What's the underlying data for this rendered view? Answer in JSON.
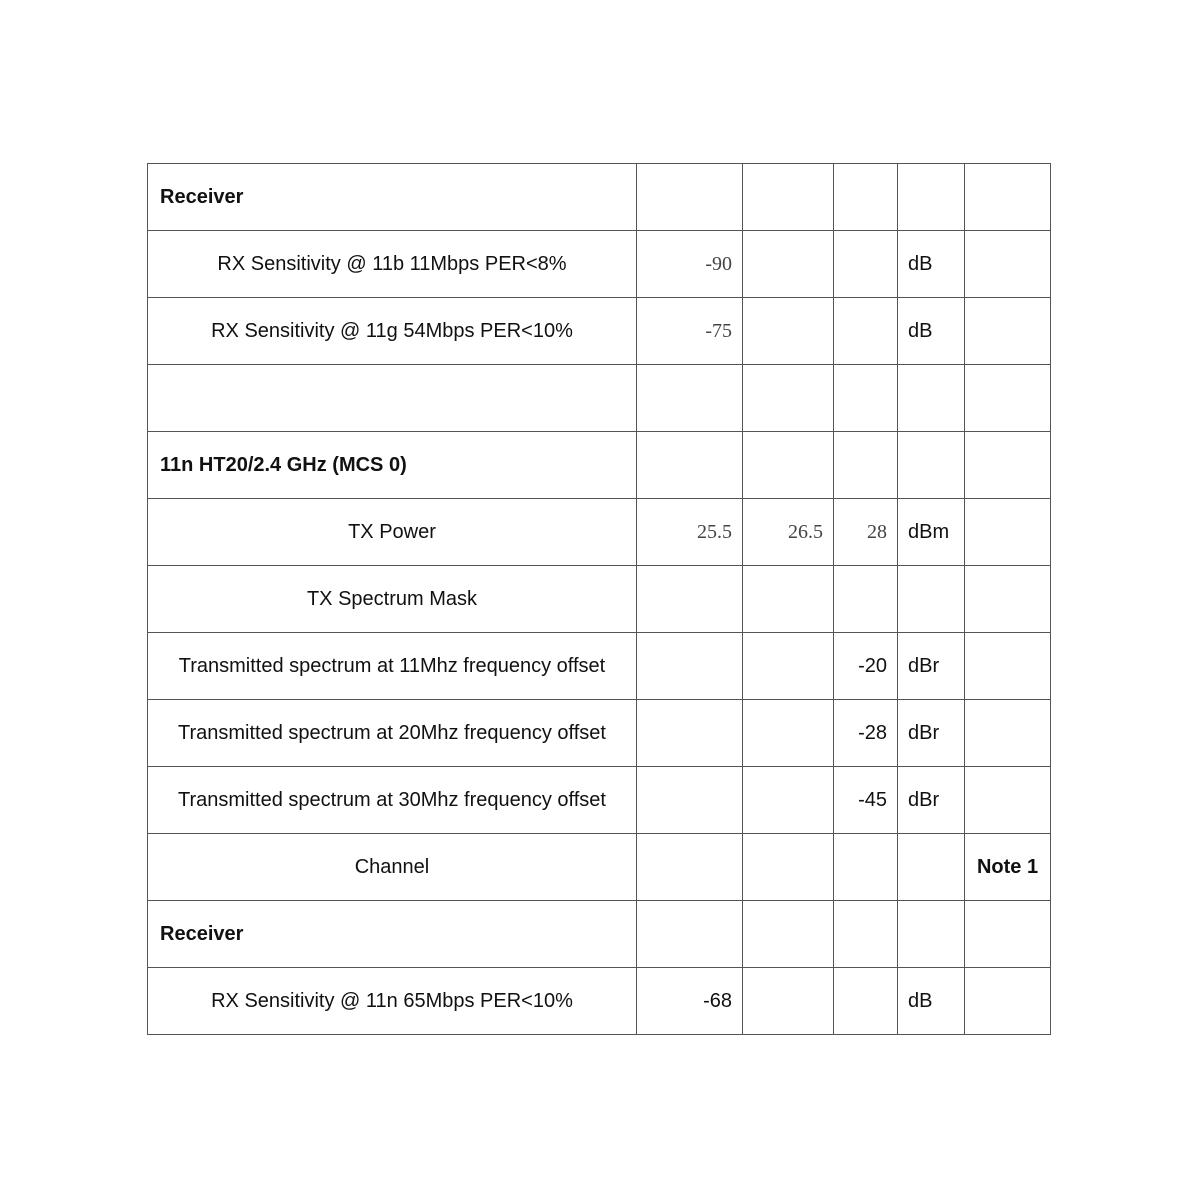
{
  "rows": [
    {
      "label": "Receiver",
      "type": "header",
      "min": "",
      "typ": "",
      "max": "",
      "unit": "",
      "note": ""
    },
    {
      "label": "RX Sensitivity @ 11b 11Mbps PER<8%",
      "type": "item",
      "min": "-90",
      "typ": "",
      "max": "",
      "unit": "dB",
      "note": ""
    },
    {
      "label": "RX Sensitivity @ 11g 54Mbps PER<10%",
      "type": "item",
      "min": "-75",
      "typ": "",
      "max": "",
      "unit": "dB",
      "note": ""
    },
    {
      "label": "",
      "type": "item",
      "min": "",
      "typ": "",
      "max": "",
      "unit": "",
      "note": ""
    },
    {
      "label": "11n HT20/2.4 GHz (MCS 0)",
      "type": "header",
      "min": "",
      "typ": "",
      "max": "",
      "unit": "",
      "note": ""
    },
    {
      "label": "TX Power",
      "type": "item",
      "min": "25.5",
      "typ": "26.5",
      "max": "28",
      "unit": "dBm",
      "note": ""
    },
    {
      "label": "TX Spectrum Mask",
      "type": "item",
      "min": "",
      "typ": "",
      "max": "",
      "unit": "",
      "note": ""
    },
    {
      "label": "Transmitted spectrum at 11Mhz frequency offset",
      "type": "item",
      "min": "",
      "typ": "",
      "max": "-20",
      "unit": "dBr",
      "note": ""
    },
    {
      "label": "Transmitted spectrum at 20Mhz frequency offset",
      "type": "item",
      "min": "",
      "typ": "",
      "max": "-28",
      "unit": "dBr",
      "note": ""
    },
    {
      "label": "Transmitted spectrum at 30Mhz frequency offset",
      "type": "item",
      "min": "",
      "typ": "",
      "max": "-45",
      "unit": "dBr",
      "note": ""
    },
    {
      "label": "Channel",
      "type": "item",
      "min": "",
      "typ": "",
      "max": "",
      "unit": "",
      "note": "Note 1"
    },
    {
      "label": "Receiver",
      "type": "header",
      "min": "",
      "typ": "",
      "max": "",
      "unit": "",
      "note": ""
    },
    {
      "label": "RX Sensitivity @ 11n 65Mbps PER<10%",
      "type": "item",
      "min": "-68",
      "typ": "",
      "max": "",
      "unit": "dB",
      "note": ""
    }
  ]
}
